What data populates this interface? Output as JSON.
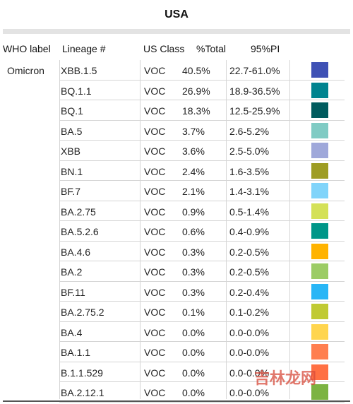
{
  "title": "USA",
  "headers": {
    "who": "WHO label",
    "lineage": "Lineage #",
    "us_class": "US Class",
    "total": "%Total",
    "pi": "95%PI"
  },
  "who_label": "Omicron",
  "rows": [
    {
      "lineage": "XBB.1.5",
      "us_class": "VOC",
      "total": "40.5%",
      "pi": "22.7-61.0%",
      "color": "#3f51b5"
    },
    {
      "lineage": "BQ.1.1",
      "us_class": "VOC",
      "total": "26.9%",
      "pi": "18.9-36.5%",
      "color": "#00838f"
    },
    {
      "lineage": "BQ.1",
      "us_class": "VOC",
      "total": "18.3%",
      "pi": "12.5-25.9%",
      "color": "#005b5e"
    },
    {
      "lineage": "BA.5",
      "us_class": "VOC",
      "total": "3.7%",
      "pi": "2.6-5.2%",
      "color": "#80cbc4"
    },
    {
      "lineage": "XBB",
      "us_class": "VOC",
      "total": "3.6%",
      "pi": "2.5-5.0%",
      "color": "#9fa8da"
    },
    {
      "lineage": "BN.1",
      "us_class": "VOC",
      "total": "2.4%",
      "pi": "1.6-3.5%",
      "color": "#9e9d24"
    },
    {
      "lineage": "BF.7",
      "us_class": "VOC",
      "total": "2.1%",
      "pi": "1.4-3.1%",
      "color": "#81d4fa"
    },
    {
      "lineage": "BA.2.75",
      "us_class": "VOC",
      "total": "0.9%",
      "pi": "0.5-1.4%",
      "color": "#d4e157"
    },
    {
      "lineage": "BA.5.2.6",
      "us_class": "VOC",
      "total": "0.6%",
      "pi": "0.4-0.9%",
      "color": "#009688"
    },
    {
      "lineage": "BA.4.6",
      "us_class": "VOC",
      "total": "0.3%",
      "pi": "0.2-0.5%",
      "color": "#ffb300"
    },
    {
      "lineage": "BA.2",
      "us_class": "VOC",
      "total": "0.3%",
      "pi": "0.2-0.5%",
      "color": "#9ccc65"
    },
    {
      "lineage": "BF.11",
      "us_class": "VOC",
      "total": "0.3%",
      "pi": "0.2-0.4%",
      "color": "#29b6f6"
    },
    {
      "lineage": "BA.2.75.2",
      "us_class": "VOC",
      "total": "0.1%",
      "pi": "0.1-0.2%",
      "color": "#c0ca33"
    },
    {
      "lineage": "BA.4",
      "us_class": "VOC",
      "total": "0.0%",
      "pi": "0.0-0.0%",
      "color": "#ffd54f"
    },
    {
      "lineage": "BA.1.1",
      "us_class": "VOC",
      "total": "0.0%",
      "pi": "0.0-0.0%",
      "color": "#ff7f50"
    },
    {
      "lineage": "B.1.1.529",
      "us_class": "VOC",
      "total": "0.0%",
      "pi": "0.0-0.0%",
      "color": "#ff7043"
    },
    {
      "lineage": "BA.2.12.1",
      "us_class": "VOC",
      "total": "0.0%",
      "pi": "0.0-0.0%",
      "color": "#7cb342"
    }
  ],
  "watermark": "吉林龙网"
}
